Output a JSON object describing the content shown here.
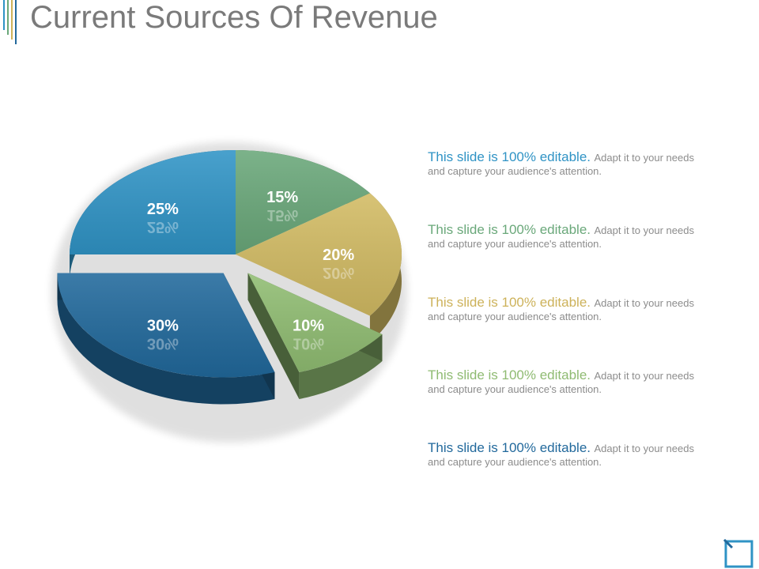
{
  "title": "Current Sources Of Revenue",
  "chart_data": {
    "type": "pie",
    "title": "Current Sources Of Revenue",
    "slices": [
      {
        "label": "15%",
        "value": 15,
        "color": "#6aa87a"
      },
      {
        "label": "20%",
        "value": 20,
        "color": "#d2bb63"
      },
      {
        "label": "10%",
        "value": 10,
        "color": "#90bd72"
      },
      {
        "label": "30%",
        "value": 30,
        "color": "#21699c"
      },
      {
        "label": "25%",
        "value": 25,
        "color": "#3094c6"
      }
    ],
    "exploded": [
      "30%",
      "10%"
    ],
    "style": "3d"
  },
  "legend": [
    {
      "heading": "This slide is 100% editable.",
      "body_1": "Adapt it to your needs",
      "body_2": "and capture your audience's attention.",
      "color": "#2f93c5"
    },
    {
      "heading": "This slide is 100% editable.",
      "body_1": "Adapt it to your needs",
      "body_2": "and capture your audience's attention.",
      "color": "#6aa87a"
    },
    {
      "heading": "This slide is 100% editable.",
      "body_1": "Adapt it to your needs",
      "body_2": "and capture your audience's attention.",
      "color": "#cdb25a"
    },
    {
      "heading": "This slide is 100% editable.",
      "body_1": "Adapt it to your needs",
      "body_2": "and capture your audience's attention.",
      "color": "#8fbb72"
    },
    {
      "heading": "This slide is 100% editable.",
      "body_1": "Adapt it to your needs",
      "body_2": "and capture your audience's attention.",
      "color": "#22699c"
    }
  ],
  "decor": {
    "corner_icon": "square-corner-icon",
    "line_colors": [
      "#2f93c5",
      "#6aa87a",
      "#cdb25a",
      "#22699c"
    ]
  }
}
